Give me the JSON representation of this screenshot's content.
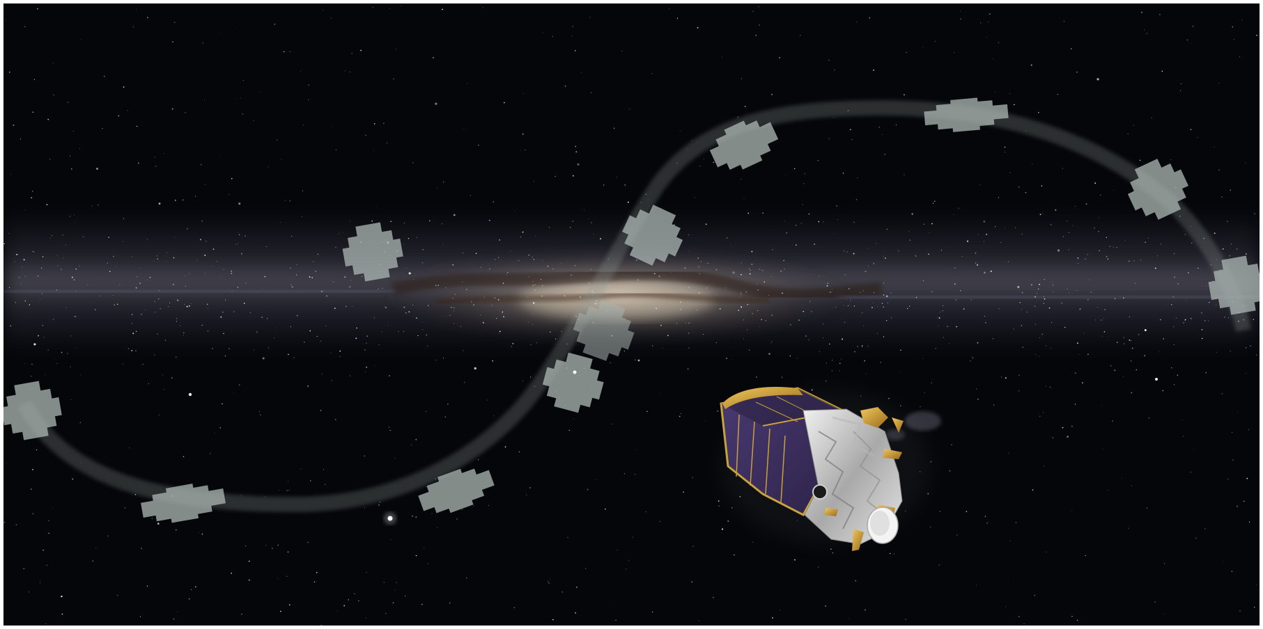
{
  "scene": {
    "background_color": "#05060a",
    "milky_way_tint": "#b8b2c8",
    "dust_color": "#3a2a1c",
    "core_glow": "#f0dcc0",
    "field_fill": "#a8b2ae",
    "path_color": "#8e9894",
    "spacecraft": {
      "solar_panel": "#3e3060",
      "panel_frame": "#c8a23a",
      "foil_gold": "#d8a83a",
      "body_silver": "#d6d6d6"
    }
  }
}
